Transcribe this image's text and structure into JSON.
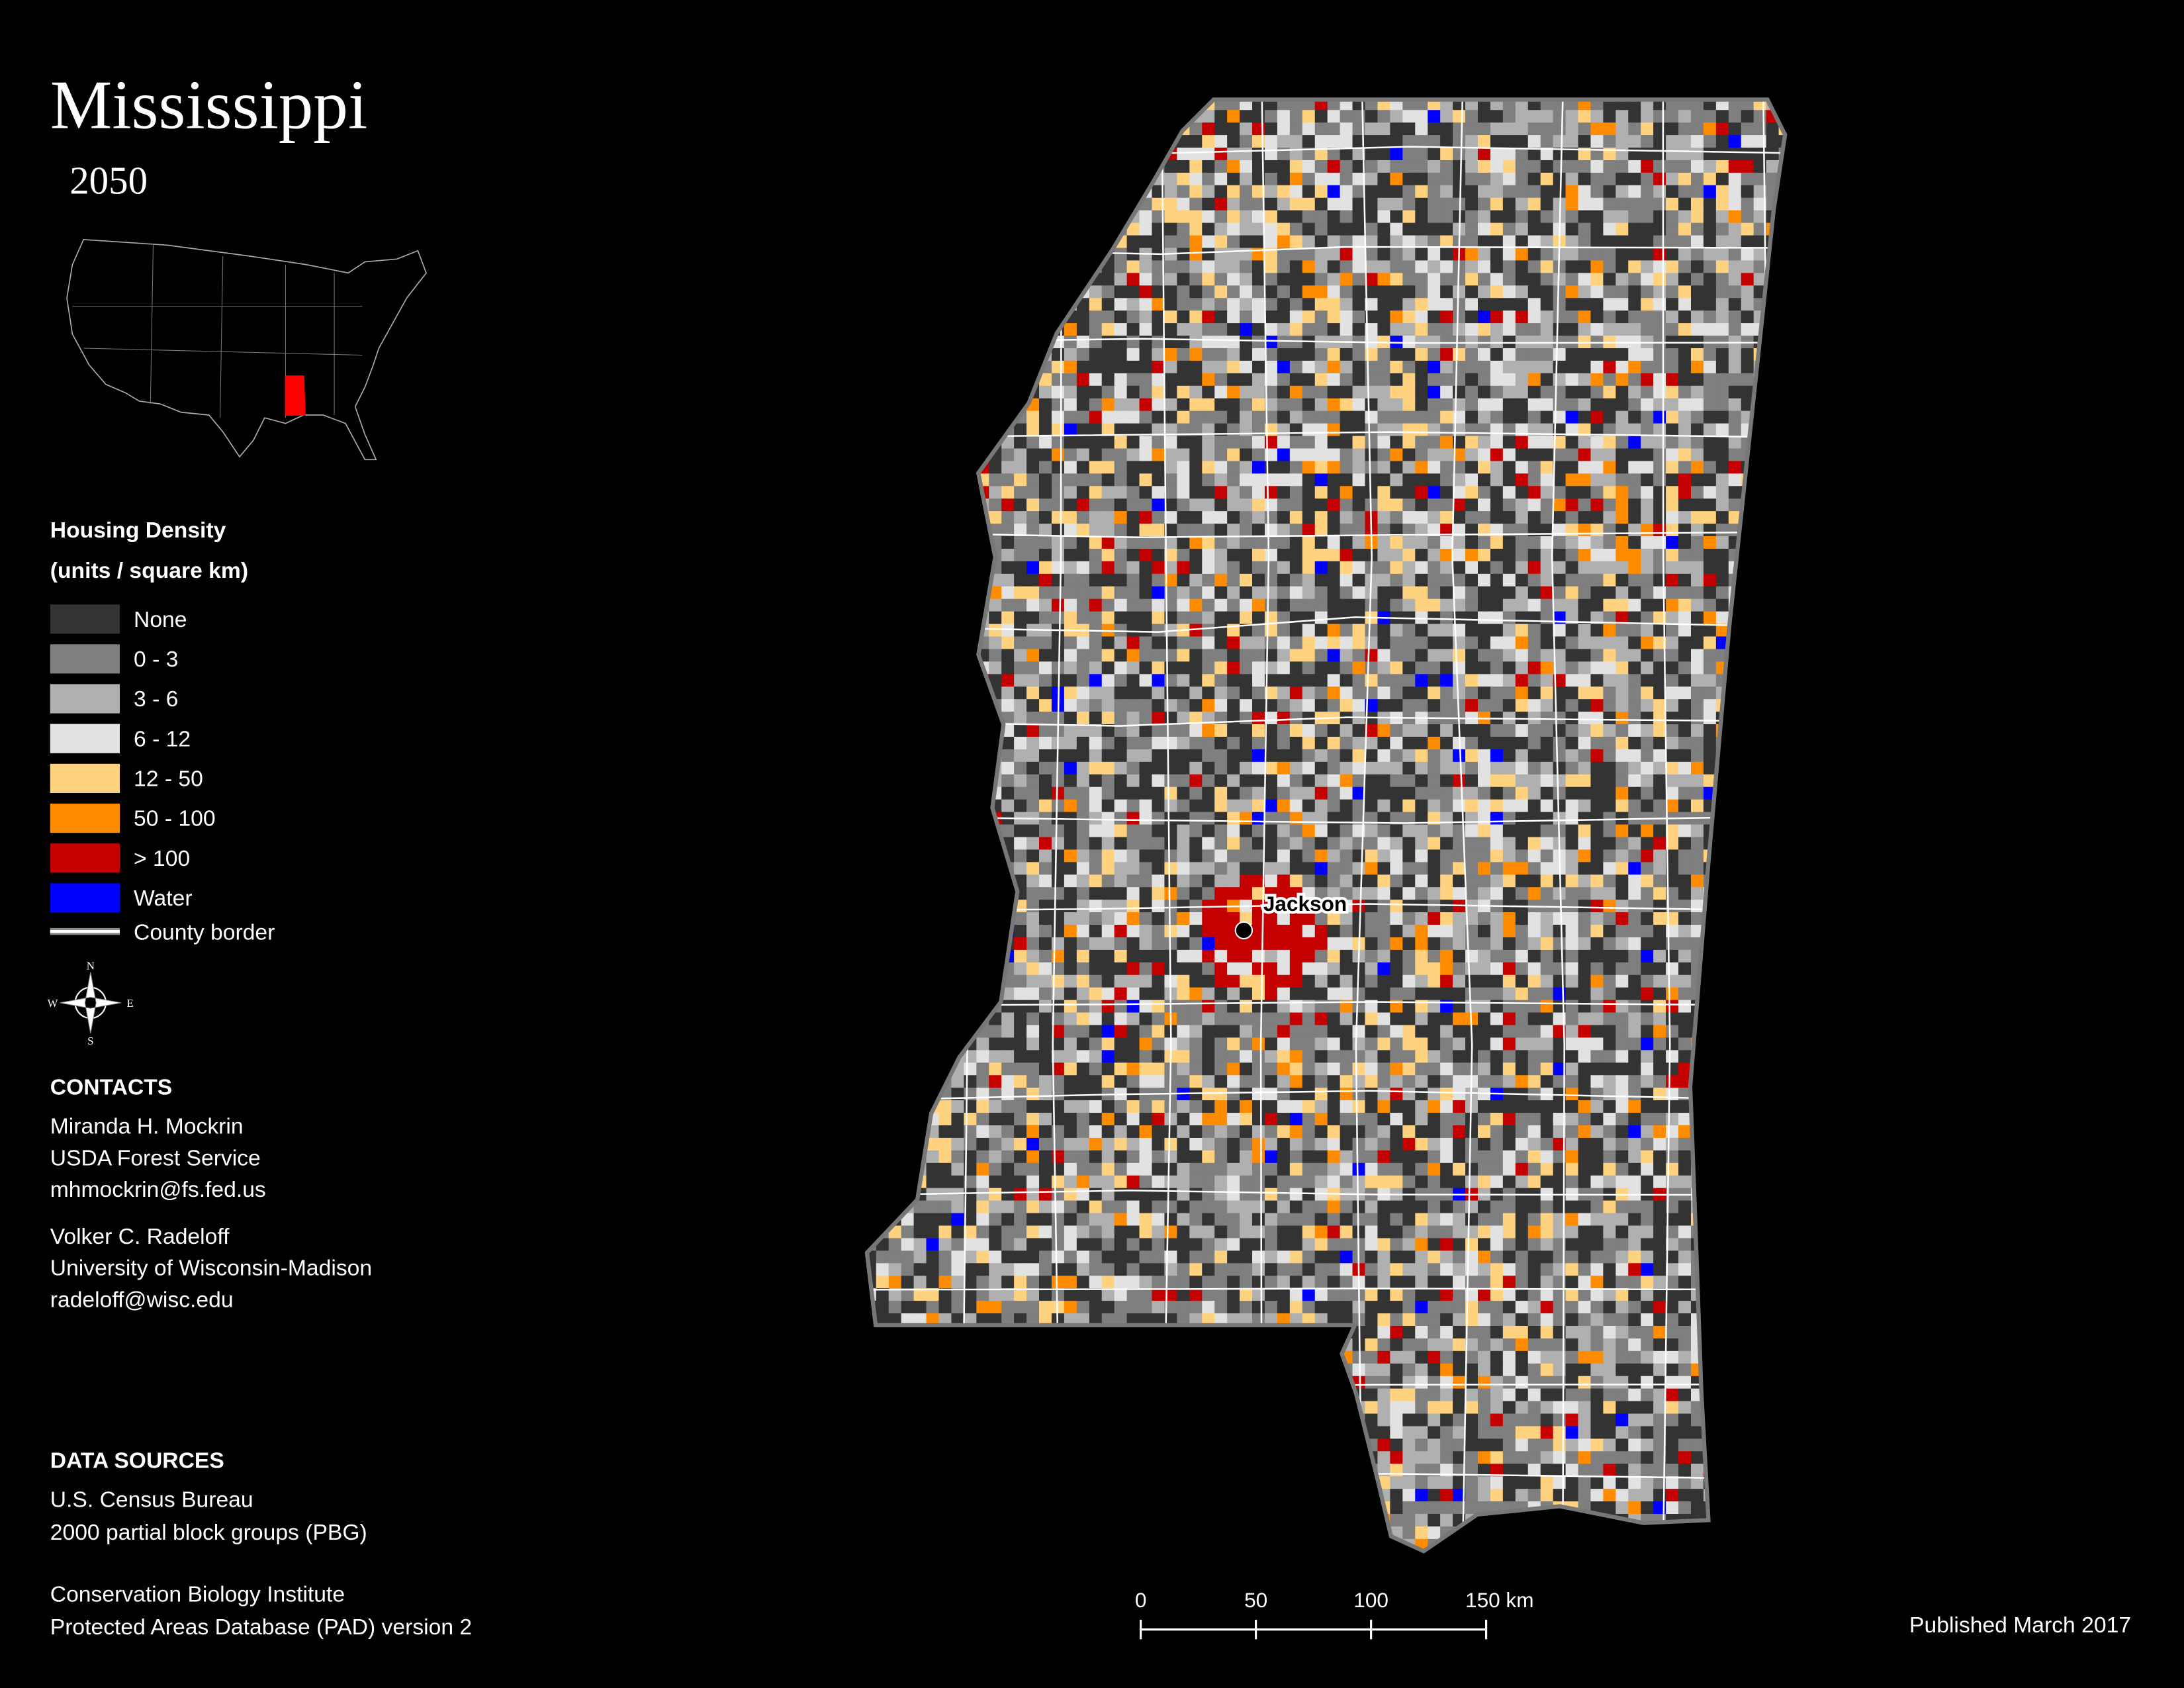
{
  "map": {
    "title": "Mississippi",
    "subtitle": "2050",
    "legend": {
      "title": "Housing Density",
      "subtitle": "(units / square km)",
      "items": [
        {
          "label": "None",
          "color": "#333333"
        },
        {
          "label": "0 - 3",
          "color": "#7f7f7f"
        },
        {
          "label": "3 - 6",
          "color": "#b0b0b0"
        },
        {
          "label": "6 - 12",
          "color": "#e2e2e2"
        },
        {
          "label": "12 - 50",
          "color": "#ffd27f"
        },
        {
          "label": "50 - 100",
          "color": "#ff8c00"
        },
        {
          "label": "> 100",
          "color": "#c40000"
        },
        {
          "label": "Water",
          "color": "#0000ff"
        }
      ],
      "border_item": {
        "label": "County border",
        "color": "#ffffff"
      }
    },
    "compass": {
      "n": "N",
      "s": "S",
      "e": "E",
      "w": "W"
    },
    "contacts": {
      "title": "CONTACTS",
      "people": [
        [
          "Miranda H. Mockrin",
          "USDA Forest Service",
          "mhmockrin@fs.fed.us"
        ],
        [
          "Volker C. Radeloff",
          "University of Wisconsin-Madison",
          "radeloff@wisc.edu"
        ]
      ]
    },
    "data_sources": {
      "title": "DATA SOURCES",
      "groups": [
        [
          "U.S. Census Bureau",
          "2000 partial block groups (PBG)"
        ],
        [
          "Conservation Biology Institute",
          "Protected Areas Database (PAD) version 2"
        ]
      ]
    },
    "city_label": "Jackson",
    "scale_bar": {
      "ticks": [
        0,
        50,
        100,
        {
          "value": 150,
          "label": "150 km"
        }
      ]
    },
    "published": "Published March 2017"
  }
}
